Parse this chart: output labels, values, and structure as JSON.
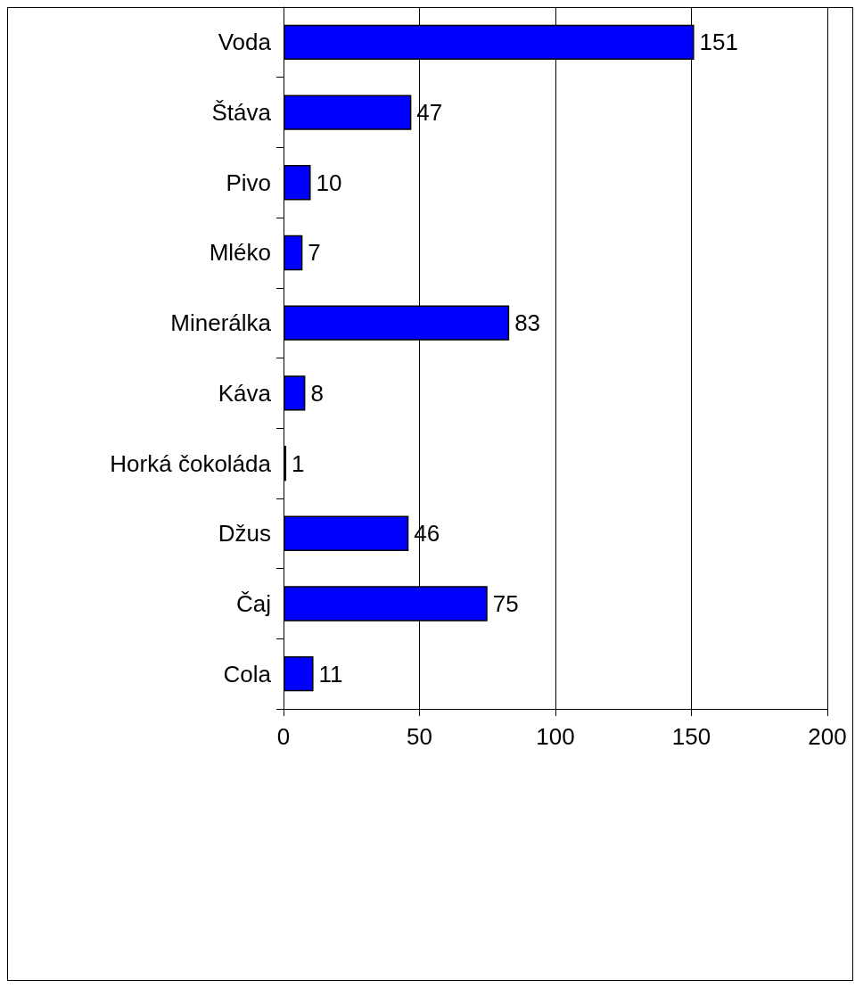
{
  "chart_data": {
    "type": "bar",
    "orientation": "horizontal",
    "categories": [
      "Voda",
      "Štáva",
      "Pivo",
      "Mléko",
      "Minerálka",
      "Káva",
      "Horká čokoláda",
      "Džus",
      "Čaj",
      "Cola"
    ],
    "values": [
      151,
      47,
      10,
      7,
      83,
      8,
      1,
      46,
      75,
      11
    ],
    "color": "#0000ff",
    "xlim": [
      0,
      200
    ],
    "xticks": [
      0,
      50,
      100,
      150,
      200
    ],
    "grid": "x",
    "data_labels": true
  }
}
